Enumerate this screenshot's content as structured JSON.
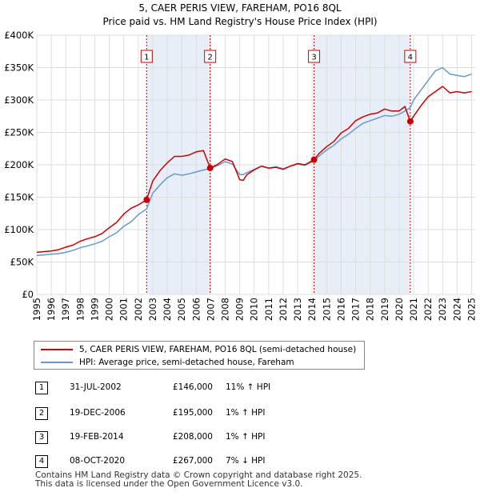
{
  "chart_data": {
    "type": "line",
    "title": "5, CAER PERIS VIEW, FAREHAM, PO16 8QL",
    "subtitle": "Price paid vs. HM Land Registry's House Price Index (HPI)",
    "x_range": [
      1995,
      2025.25
    ],
    "y_range": [
      0,
      400000
    ],
    "y_ticks": [
      {
        "value": 0,
        "label": "£0"
      },
      {
        "value": 50000,
        "label": "£50K"
      },
      {
        "value": 100000,
        "label": "£100K"
      },
      {
        "value": 150000,
        "label": "£150K"
      },
      {
        "value": 200000,
        "label": "£200K"
      },
      {
        "value": 250000,
        "label": "£250K"
      },
      {
        "value": 300000,
        "label": "£300K"
      },
      {
        "value": 350000,
        "label": "£350K"
      },
      {
        "value": 400000,
        "label": "£400K"
      }
    ],
    "x_ticks": [
      "1995",
      "1996",
      "1997",
      "1998",
      "1999",
      "2000",
      "2001",
      "2002",
      "2003",
      "2004",
      "2005",
      "2006",
      "2007",
      "2008",
      "2009",
      "2010",
      "2011",
      "2012",
      "2013",
      "2014",
      "2015",
      "2016",
      "2017",
      "2018",
      "2019",
      "2020",
      "2021",
      "2022",
      "2023",
      "2024",
      "2025"
    ],
    "colors": {
      "property": "#cc0000",
      "hpi": "#6699cc",
      "band": "#e8eef8",
      "grid": "#dddddd",
      "marker_line": "#cc0000"
    },
    "series": [
      {
        "name": "5, CAER PERIS VIEW, FAREHAM, PO16 8QL (semi-detached house)",
        "color": "#cc0000",
        "x": [
          1995.0,
          1995.5,
          1996.0,
          1996.5,
          1997.0,
          1997.5,
          1998.0,
          1998.5,
          1999.0,
          1999.5,
          2000.0,
          2000.5,
          2001.0,
          2001.5,
          2002.0,
          2002.58,
          2003.0,
          2003.5,
          2004.0,
          2004.5,
          2005.0,
          2005.5,
          2006.0,
          2006.5,
          2006.96,
          2007.5,
          2008.0,
          2008.5,
          2009.0,
          2009.25,
          2009.5,
          2010.0,
          2010.5,
          2011.0,
          2011.5,
          2012.0,
          2012.5,
          2013.0,
          2013.5,
          2014.13,
          2014.5,
          2015.0,
          2015.5,
          2016.0,
          2016.5,
          2017.0,
          2017.5,
          2018.0,
          2018.5,
          2019.0,
          2019.5,
          2020.0,
          2020.4,
          2020.77,
          2021.0,
          2021.5,
          2022.0,
          2022.5,
          2023.0,
          2023.5,
          2024.0,
          2024.5,
          2025.0
        ],
        "values": [
          65000,
          66000,
          67000,
          69000,
          73000,
          76000,
          82000,
          86000,
          89000,
          94000,
          103000,
          111000,
          124000,
          133000,
          138000,
          146000,
          175000,
          191000,
          203000,
          213000,
          213000,
          215000,
          220000,
          222000,
          195000,
          201000,
          209000,
          205000,
          177000,
          176000,
          185000,
          192000,
          198000,
          195000,
          196000,
          193000,
          198000,
          202000,
          200000,
          208000,
          218000,
          228000,
          236000,
          249000,
          256000,
          268000,
          274000,
          278000,
          280000,
          286000,
          283000,
          283000,
          290000,
          267000,
          275000,
          291000,
          305000,
          313000,
          321000,
          311000,
          313000,
          311000,
          313000
        ]
      },
      {
        "name": "HPI: Average price, semi-detached house, Fareham",
        "color": "#6699cc",
        "x": [
          1995.0,
          1995.5,
          1996.0,
          1996.5,
          1997.0,
          1997.5,
          1998.0,
          1998.5,
          1999.0,
          1999.5,
          2000.0,
          2000.5,
          2001.0,
          2001.5,
          2002.0,
          2002.58,
          2003.0,
          2003.5,
          2004.0,
          2004.5,
          2005.0,
          2005.5,
          2006.0,
          2006.5,
          2006.96,
          2007.5,
          2008.0,
          2008.5,
          2009.0,
          2009.25,
          2009.5,
          2010.0,
          2010.5,
          2011.0,
          2011.5,
          2012.0,
          2012.5,
          2013.0,
          2013.5,
          2014.13,
          2014.5,
          2015.0,
          2015.5,
          2016.0,
          2016.5,
          2017.0,
          2017.5,
          2018.0,
          2018.5,
          2019.0,
          2019.5,
          2020.0,
          2020.4,
          2020.77,
          2021.0,
          2021.5,
          2022.0,
          2022.5,
          2023.0,
          2023.5,
          2024.0,
          2024.5,
          2025.0
        ],
        "values": [
          60000,
          61000,
          62000,
          63000,
          65000,
          68000,
          72000,
          75000,
          78000,
          82000,
          89000,
          95000,
          105000,
          112000,
          123000,
          132000,
          156000,
          169000,
          180000,
          186000,
          184000,
          186000,
          189000,
          192000,
          194000,
          199000,
          205000,
          201000,
          185000,
          185000,
          188000,
          193000,
          198000,
          195000,
          197000,
          194000,
          198000,
          201000,
          199000,
          206000,
          214000,
          223000,
          230000,
          240000,
          247000,
          256000,
          264000,
          268000,
          272000,
          276000,
          275000,
          278000,
          283000,
          288000,
          300000,
          315000,
          330000,
          345000,
          350000,
          340000,
          338000,
          336000,
          340000
        ]
      }
    ],
    "transactions": [
      {
        "num": "1",
        "date": "31-JUL-2002",
        "price": "£146,000",
        "relation": "11% ↑ HPI",
        "x": 2002.58,
        "value": 146000
      },
      {
        "num": "2",
        "date": "19-DEC-2006",
        "price": "£195,000",
        "relation": "1% ↑ HPI",
        "x": 2006.96,
        "value": 195000
      },
      {
        "num": "3",
        "date": "19-FEB-2014",
        "price": "£208,000",
        "relation": "1% ↑ HPI",
        "x": 2014.13,
        "value": 208000
      },
      {
        "num": "4",
        "date": "08-OCT-2020",
        "price": "£267,000",
        "relation": "7% ↓ HPI",
        "x": 2020.77,
        "value": 267000
      }
    ],
    "shaded_spans": [
      [
        2002.58,
        2006.96
      ],
      [
        2014.13,
        2020.77
      ]
    ],
    "legend_position": "below"
  },
  "legend": {
    "property_label": "5, CAER PERIS VIEW, FAREHAM, PO16 8QL (semi-detached house)",
    "hpi_label": "HPI: Average price, semi-detached house, Fareham"
  },
  "footer": {
    "line1": "Contains HM Land Registry data © Crown copyright and database right 2025.",
    "line2": "This data is licensed under the Open Government Licence v3.0."
  }
}
